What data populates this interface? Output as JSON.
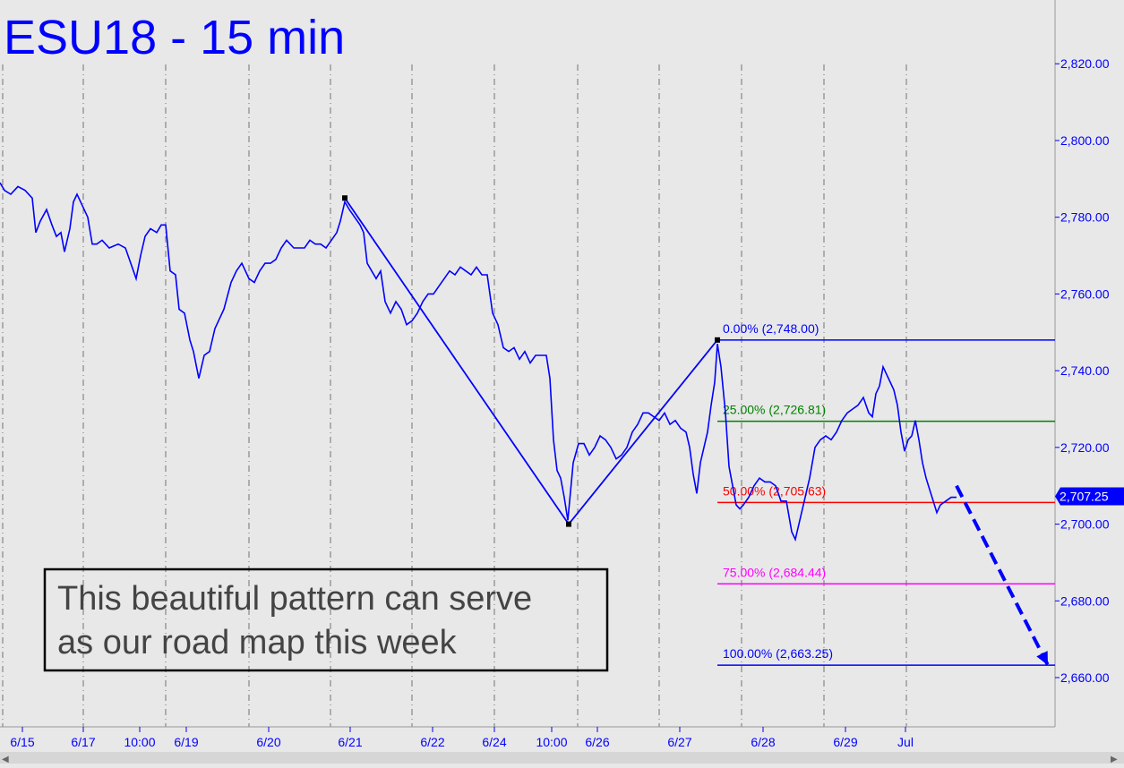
{
  "chart_data": {
    "type": "line",
    "title": "ESU18 - 15 min",
    "y_axis": {
      "ticks": [
        "2,660.00",
        "2,680.00",
        "2,700.00",
        "2,720.00",
        "2,740.00",
        "2,760.00",
        "2,780.00",
        "2,800.00",
        "2,820.00"
      ],
      "tick_values": [
        2660,
        2680,
        2700,
        2720,
        2740,
        2760,
        2780,
        2800,
        2820
      ],
      "ylim": [
        2642,
        2835
      ],
      "side": "right"
    },
    "x_axis": {
      "labels": [
        "6/15",
        "6/17",
        "10:00",
        "6/19",
        "6/20",
        "6/21",
        "6/22",
        "6/24",
        "10:00",
        "6/26",
        "6/27",
        "6/28",
        "6/29",
        "Jul"
      ],
      "grid": "dashed vertical session dividers"
    },
    "series": [
      {
        "color": "#0000ff",
        "points": [
          [
            0,
            2789
          ],
          [
            5,
            2787
          ],
          [
            12,
            2786
          ],
          [
            20,
            2788
          ],
          [
            28,
            2787
          ],
          [
            36,
            2785
          ],
          [
            40,
            2776
          ],
          [
            45,
            2779
          ],
          [
            52,
            2782
          ],
          [
            58,
            2778
          ],
          [
            63,
            2775
          ],
          [
            68,
            2776
          ],
          [
            72,
            2771
          ],
          [
            78,
            2777
          ],
          [
            82,
            2784
          ],
          [
            86,
            2786
          ],
          [
            92,
            2783
          ],
          [
            98,
            2780
          ],
          [
            103,
            2773
          ],
          [
            108,
            2773
          ],
          [
            114,
            2774
          ],
          [
            122,
            2772
          ],
          [
            132,
            2773
          ],
          [
            140,
            2772
          ],
          [
            146,
            2768
          ],
          [
            152,
            2764
          ],
          [
            157,
            2770
          ],
          [
            162,
            2775
          ],
          [
            168,
            2777
          ],
          [
            175,
            2776
          ],
          [
            180,
            2778
          ],
          [
            185,
            2778
          ],
          [
            190,
            2766
          ],
          [
            196,
            2765
          ],
          [
            200,
            2756
          ],
          [
            206,
            2755
          ],
          [
            212,
            2748
          ],
          [
            216,
            2745
          ],
          [
            222,
            2738
          ],
          [
            228,
            2744
          ],
          [
            234,
            2745
          ],
          [
            240,
            2751
          ],
          [
            246,
            2754
          ],
          [
            250,
            2756
          ],
          [
            258,
            2763
          ],
          [
            264,
            2766
          ],
          [
            270,
            2768
          ],
          [
            278,
            2764
          ],
          [
            284,
            2763
          ],
          [
            290,
            2766
          ],
          [
            296,
            2768
          ],
          [
            302,
            2768
          ],
          [
            308,
            2769
          ],
          [
            314,
            2772
          ],
          [
            320,
            2774
          ],
          [
            328,
            2772
          ],
          [
            334,
            2772
          ],
          [
            340,
            2772
          ],
          [
            346,
            2774
          ],
          [
            352,
            2773
          ],
          [
            358,
            2773
          ],
          [
            364,
            2772
          ],
          [
            370,
            2774
          ],
          [
            376,
            2776
          ],
          [
            380,
            2779
          ],
          [
            385,
            2784
          ],
          [
            390,
            2782
          ],
          [
            396,
            2780
          ],
          [
            402,
            2778
          ],
          [
            406,
            2776
          ],
          [
            410,
            2768
          ],
          [
            415,
            2766
          ],
          [
            420,
            2764
          ],
          [
            425,
            2766
          ],
          [
            430,
            2758
          ],
          [
            436,
            2755
          ],
          [
            442,
            2758
          ],
          [
            448,
            2756
          ],
          [
            454,
            2752
          ],
          [
            460,
            2753
          ],
          [
            466,
            2755
          ],
          [
            472,
            2758
          ],
          [
            478,
            2760
          ],
          [
            484,
            2760
          ],
          [
            490,
            2762
          ],
          [
            496,
            2764
          ],
          [
            502,
            2766
          ],
          [
            508,
            2765
          ],
          [
            514,
            2767
          ],
          [
            520,
            2766
          ],
          [
            526,
            2765
          ],
          [
            532,
            2767
          ],
          [
            538,
            2765
          ],
          [
            544,
            2765
          ],
          [
            550,
            2755
          ],
          [
            556,
            2752
          ],
          [
            562,
            2746
          ],
          [
            568,
            2745
          ],
          [
            574,
            2746
          ],
          [
            580,
            2743
          ],
          [
            586,
            2745
          ],
          [
            592,
            2742
          ],
          [
            598,
            2744
          ],
          [
            604,
            2744
          ],
          [
            610,
            2744
          ],
          [
            614,
            2738
          ],
          [
            618,
            2722
          ],
          [
            622,
            2714
          ],
          [
            626,
            2712
          ],
          [
            630,
            2707
          ],
          [
            634,
            2701
          ],
          [
            640,
            2716
          ],
          [
            646,
            2721
          ],
          [
            652,
            2721
          ],
          [
            658,
            2718
          ],
          [
            664,
            2720
          ],
          [
            670,
            2723
          ],
          [
            676,
            2722
          ],
          [
            682,
            2720
          ],
          [
            688,
            2717
          ],
          [
            694,
            2718
          ],
          [
            700,
            2720
          ],
          [
            706,
            2724
          ],
          [
            712,
            2726
          ],
          [
            718,
            2729
          ],
          [
            724,
            2729
          ],
          [
            730,
            2728
          ],
          [
            736,
            2727
          ],
          [
            742,
            2729
          ],
          [
            748,
            2726
          ],
          [
            754,
            2727
          ],
          [
            760,
            2725
          ],
          [
            766,
            2724
          ],
          [
            770,
            2720
          ],
          [
            774,
            2713
          ],
          [
            778,
            2708
          ],
          [
            782,
            2716
          ],
          [
            786,
            2720
          ],
          [
            790,
            2724
          ],
          [
            794,
            2731
          ],
          [
            798,
            2737
          ],
          [
            801,
            2747
          ],
          [
            805,
            2741
          ],
          [
            810,
            2729
          ],
          [
            814,
            2715
          ],
          [
            818,
            2710
          ],
          [
            822,
            2705
          ],
          [
            826,
            2704
          ],
          [
            830,
            2705
          ],
          [
            836,
            2707
          ],
          [
            842,
            2710
          ],
          [
            848,
            2712
          ],
          [
            854,
            2711
          ],
          [
            860,
            2711
          ],
          [
            866,
            2710
          ],
          [
            872,
            2706
          ],
          [
            878,
            2706
          ],
          [
            884,
            2698
          ],
          [
            888,
            2696
          ],
          [
            892,
            2700
          ],
          [
            898,
            2706
          ],
          [
            904,
            2712
          ],
          [
            910,
            2720
          ],
          [
            916,
            2722
          ],
          [
            922,
            2723
          ],
          [
            928,
            2722
          ],
          [
            934,
            2724
          ],
          [
            940,
            2727
          ],
          [
            946,
            2729
          ],
          [
            952,
            2730
          ],
          [
            958,
            2731
          ],
          [
            964,
            2733
          ],
          [
            970,
            2729
          ],
          [
            974,
            2728
          ],
          [
            978,
            2734
          ],
          [
            982,
            2736
          ],
          [
            986,
            2741
          ],
          [
            990,
            2739
          ],
          [
            994,
            2737
          ],
          [
            998,
            2735
          ],
          [
            1002,
            2731
          ],
          [
            1006,
            2724
          ],
          [
            1010,
            2719
          ],
          [
            1014,
            2722
          ],
          [
            1018,
            2723
          ],
          [
            1022,
            2727
          ],
          [
            1026,
            2722
          ],
          [
            1030,
            2716
          ],
          [
            1034,
            2712
          ],
          [
            1038,
            2709
          ],
          [
            1042,
            2706
          ],
          [
            1046,
            2703
          ],
          [
            1050,
            2705
          ],
          [
            1056,
            2706
          ],
          [
            1062,
            2707
          ],
          [
            1068,
            2707
          ]
        ]
      }
    ],
    "pattern_points": [
      [
        385,
        2785
      ],
      [
        635,
        2700
      ],
      [
        801,
        2748
      ]
    ],
    "projection": [
      [
        1068,
        2710
      ],
      [
        1170,
        2663.25
      ]
    ],
    "fib_levels": [
      {
        "label": "0.00% (2,748.00)",
        "value": 2748.0,
        "color": "#0000ff"
      },
      {
        "label": "25.00% (2,726.81)",
        "value": 2726.81,
        "color": "#008000"
      },
      {
        "label": "50.00% (2,705.63)",
        "value": 2705.63,
        "color": "#ff0000"
      },
      {
        "label": "75.00% (2,684.44)",
        "value": 2684.44,
        "color": "#ff00ff"
      },
      {
        "label": "100.00% (2,663.25)",
        "value": 2663.25,
        "color": "#0000ff"
      }
    ],
    "last_price": "2,707.25",
    "last_price_value": 2707.25,
    "annotation": "This beautiful pattern can serve as our road map this week"
  },
  "annotation_lines": [
    "This beautiful pattern can serve",
    "as our road map this week"
  ],
  "colors": {
    "background": "#e8e8e8",
    "price": "#0000ff",
    "text": "#444444",
    "axis": "#0000ff"
  }
}
